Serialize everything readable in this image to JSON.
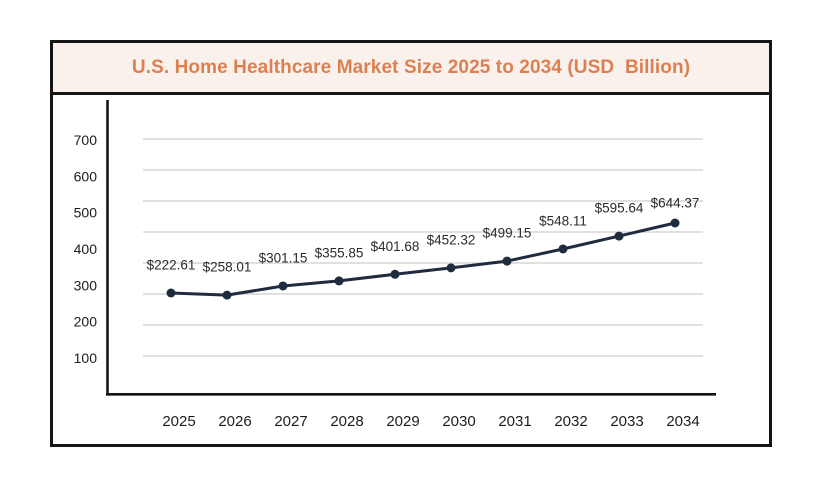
{
  "window": {
    "background": "#FFFFFF",
    "frame_border_color": "#151515"
  },
  "header": {
    "title": "U.S. Home Healthcare Market Size 2025 to 2034 (USD  Billion)",
    "text_color": "#DD8051",
    "background": "#FAF1EC"
  },
  "chart_data": {
    "type": "line",
    "title": "U.S. Home Healthcare Market Size 2025 to 2034 (USD Billion)",
    "categories": [
      "2025",
      "2026",
      "2027",
      "2028",
      "2029",
      "2030",
      "2031",
      "2032",
      "2033",
      "2034"
    ],
    "series": [
      {
        "name": "U.S. Home Healthcare Market Size",
        "values": [
          222.61,
          258.01,
          301.15,
          355.85,
          401.68,
          452.32,
          499.15,
          548.11,
          595.64,
          644.37
        ],
        "point_labels": [
          "$222.61",
          "$258.01",
          "$301.15",
          "$355.85",
          "$401.68",
          "$452.32",
          "$499.15",
          "$548.11",
          "$595.64",
          "$644.37"
        ]
      }
    ],
    "xlabel": "",
    "ylabel": "",
    "y_ticks": [
      "700",
      "600",
      "500",
      "400",
      "300",
      "200",
      "100"
    ],
    "ylim": [
      100,
      700
    ],
    "grid": true,
    "legend": false,
    "colors": {
      "line": "#1F2B3E",
      "marker": "#1F2B3E",
      "grid": "#CDCDCD",
      "axis": "#141414",
      "tick_text": "#1C1C1C",
      "point_label_text": "#2B2B2B"
    }
  }
}
